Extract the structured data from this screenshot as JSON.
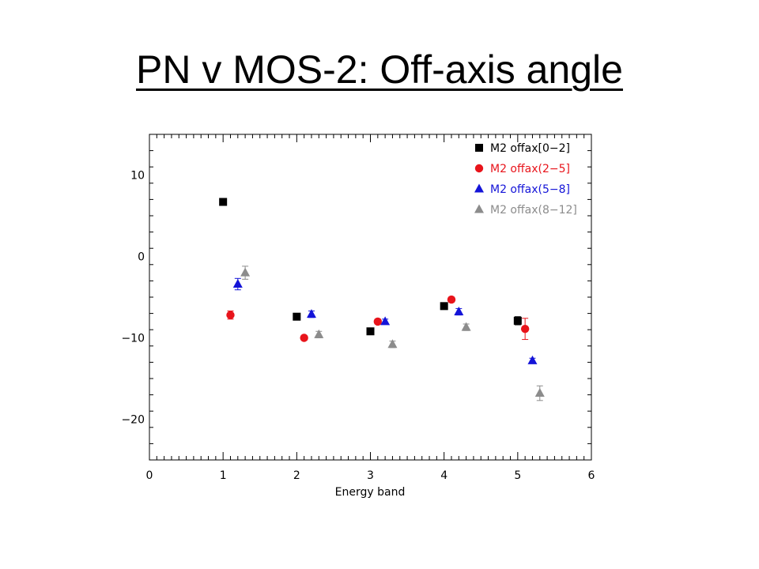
{
  "slide": {
    "title": "PN v MOS-2: Off-axis angle"
  },
  "chart_data": {
    "type": "scatter",
    "title": "",
    "xlabel": "Energy band",
    "ylabel": "",
    "xlim": [
      0,
      6
    ],
    "ylim": [
      -25,
      15
    ],
    "xticks": [
      0,
      1,
      2,
      3,
      4,
      5,
      6
    ],
    "yticks": [
      -20,
      -10,
      0,
      10
    ],
    "xtick_labels": [
      "0",
      "1",
      "2",
      "3",
      "4",
      "5",
      "6"
    ],
    "ytick_labels": [
      "−20",
      "−10",
      "0",
      "10"
    ],
    "grid": false,
    "legend_position": "top-right",
    "series": [
      {
        "name": "M2 offax[0−2]",
        "color": "#000000",
        "marker": "square",
        "points": [
          {
            "x": 1.0,
            "y": 6.7,
            "err": 0.3
          },
          {
            "x": 2.0,
            "y": -7.4,
            "err": 0.3
          },
          {
            "x": 3.0,
            "y": -9.2,
            "err": 0.3
          },
          {
            "x": 4.0,
            "y": -6.1,
            "err": 0.3
          },
          {
            "x": 5.0,
            "y": -7.9,
            "err": 0.5
          }
        ]
      },
      {
        "name": "M2 offax(2−5]",
        "color": "#e8141b",
        "marker": "circle",
        "points": [
          {
            "x": 1.1,
            "y": -7.2,
            "err": 0.5
          },
          {
            "x": 2.1,
            "y": -10.0,
            "err": 0.3
          },
          {
            "x": 3.1,
            "y": -8.0,
            "err": 0.3
          },
          {
            "x": 4.1,
            "y": -5.3,
            "err": 0.3
          },
          {
            "x": 5.1,
            "y": -8.9,
            "err": 1.3
          }
        ]
      },
      {
        "name": "M2 offax(5−8]",
        "color": "#1414d8",
        "marker": "triangle",
        "points": [
          {
            "x": 1.2,
            "y": -3.4,
            "err": 0.7
          },
          {
            "x": 2.2,
            "y": -7.1,
            "err": 0.4
          },
          {
            "x": 3.2,
            "y": -8.0,
            "err": 0.3
          },
          {
            "x": 4.2,
            "y": -6.8,
            "err": 0.4
          },
          {
            "x": 5.2,
            "y": -12.8,
            "err": 0.3
          }
        ]
      },
      {
        "name": "M2 offax(8−12]",
        "color": "#8c8c8c",
        "marker": "triangle",
        "points": [
          {
            "x": 1.3,
            "y": -2.0,
            "err": 0.8
          },
          {
            "x": 2.3,
            "y": -9.6,
            "err": 0.4
          },
          {
            "x": 3.3,
            "y": -10.8,
            "err": 0.4
          },
          {
            "x": 4.3,
            "y": -8.7,
            "err": 0.4
          },
          {
            "x": 5.3,
            "y": -16.8,
            "err": 0.9
          }
        ]
      }
    ]
  }
}
